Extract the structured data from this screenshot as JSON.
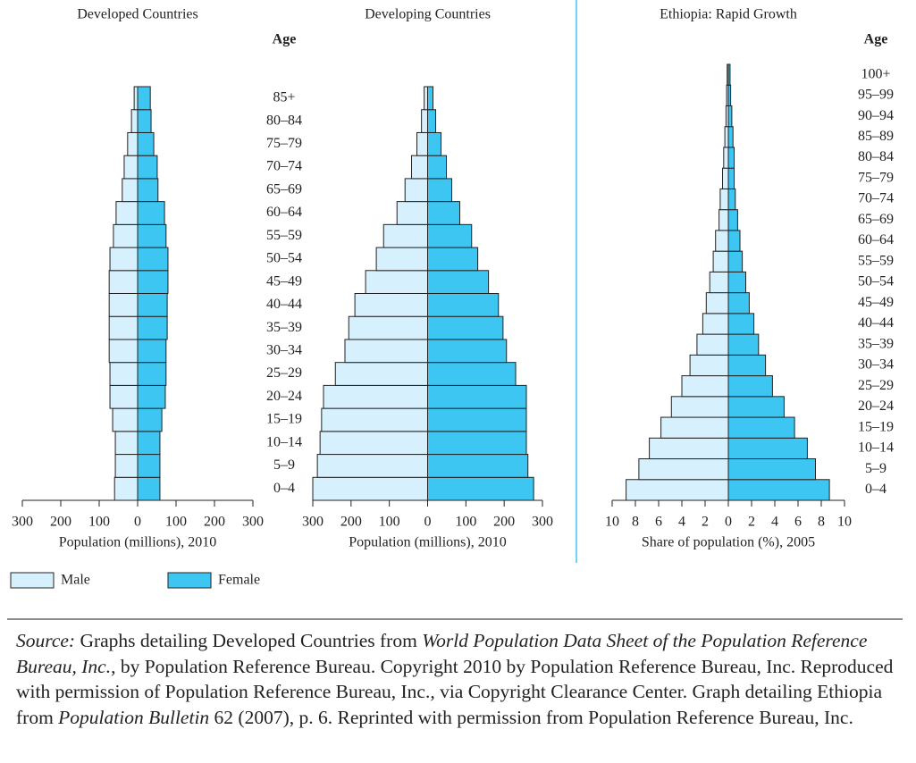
{
  "chart_data": [
    {
      "type": "pyramid",
      "title": "Developed Countries",
      "x_label": "Population (millions), 2010",
      "xlim": [
        -300,
        300
      ],
      "xticks": [
        {
          "value": -300,
          "label": "300"
        },
        {
          "value": -200,
          "label": "200"
        },
        {
          "value": -100,
          "label": "100"
        },
        0,
        100,
        200,
        300
      ],
      "series": [
        {
          "name": "Male",
          "color": "#d6f0fd",
          "values": [
            60,
            58,
            58,
            65,
            72,
            72,
            74,
            74,
            74,
            74,
            72,
            63,
            56,
            40,
            35,
            26,
            16,
            9
          ]
        },
        {
          "name": "Female",
          "color": "#3ec6f3",
          "values": [
            58,
            58,
            58,
            63,
            72,
            74,
            74,
            77,
            77,
            79,
            79,
            74,
            70,
            53,
            51,
            42,
            35,
            33
          ]
        }
      ]
    },
    {
      "type": "pyramid",
      "title": "Developing Countries",
      "x_label": "Population (millions), 2010",
      "y_label": "Age",
      "categories": [
        "0–4",
        "5–9",
        "10–14",
        "15–19",
        "20–24",
        "25–29",
        "30–34",
        "35–39",
        "40–44",
        "45–49",
        "50–54",
        "55–59",
        "60–64",
        "65–69",
        "70–74",
        "75–79",
        "80–84",
        "85+"
      ],
      "xlim": [
        -300,
        300
      ],
      "xticks": [
        {
          "value": -300,
          "label": "300"
        },
        {
          "value": -200,
          "label": "200"
        },
        {
          "value": -100,
          "label": "100"
        },
        0,
        100,
        200,
        300
      ],
      "series": [
        {
          "values": [
            300,
            288,
            281,
            277,
            272,
            241,
            216,
            206,
            190,
            162,
            134,
            115,
            80,
            59,
            42,
            28,
            16,
            9
          ]
        },
        {
          "values": [
            277,
            262,
            258,
            258,
            258,
            230,
            206,
            197,
            185,
            159,
            131,
            115,
            84,
            63,
            49,
            35,
            21,
            14
          ]
        }
      ]
    },
    {
      "type": "pyramid",
      "title": "Ethiopia: Rapid Growth",
      "x_label": "Share of population (%), 2005",
      "y_label": "Age",
      "categories": [
        "0–4",
        "5–9",
        "10–14",
        "15–19",
        "20–24",
        "25–29",
        "30–34",
        "35–39",
        "40–44",
        "45–49",
        "50–54",
        "55–59",
        "60–64",
        "65–69",
        "70–74",
        "75–79",
        "80–84",
        "85–89",
        "90–94",
        "95–99",
        "100+"
      ],
      "xlim": [
        -10,
        10
      ],
      "xticks": [
        {
          "value": -10,
          "label": "10"
        },
        {
          "value": -8,
          "label": "8"
        },
        {
          "value": -6,
          "label": "6"
        },
        {
          "value": -4,
          "label": "4"
        },
        {
          "value": -2,
          "label": "2"
        },
        0,
        2,
        4,
        6,
        8,
        10
      ],
      "series": [
        {
          "values": [
            8.8,
            7.7,
            6.8,
            5.8,
            4.9,
            4.0,
            3.3,
            2.7,
            2.2,
            1.9,
            1.6,
            1.3,
            1.1,
            0.8,
            0.7,
            0.5,
            0.4,
            0.3,
            0.2,
            0.15,
            0.1
          ]
        },
        {
          "values": [
            8.7,
            7.5,
            6.8,
            5.7,
            4.8,
            3.8,
            3.2,
            2.6,
            2.2,
            1.8,
            1.5,
            1.2,
            1.0,
            0.8,
            0.6,
            0.5,
            0.5,
            0.4,
            0.3,
            0.2,
            0.15
          ]
        }
      ]
    }
  ],
  "source": {
    "label": "Source:",
    "parts": [
      {
        "text": " Graphs detailing Developed Countries from "
      },
      {
        "text": "World Population Data Sheet of the Population Reference Bureau, Inc.",
        "italic": true
      },
      {
        "text": ", by Population Reference Bureau. Copyright 2010 by Population Reference Bureau, Inc. Reproduced with permission of Population Reference Bureau, Inc., via Copyright Clearance Center. Graph detailing Ethiopia from "
      },
      {
        "text": "Population Bulletin",
        "italic": true
      },
      {
        "text": " 62 (2007), p. 6. Reprinted with permission from Population Reference Bureau, Inc."
      }
    ]
  }
}
